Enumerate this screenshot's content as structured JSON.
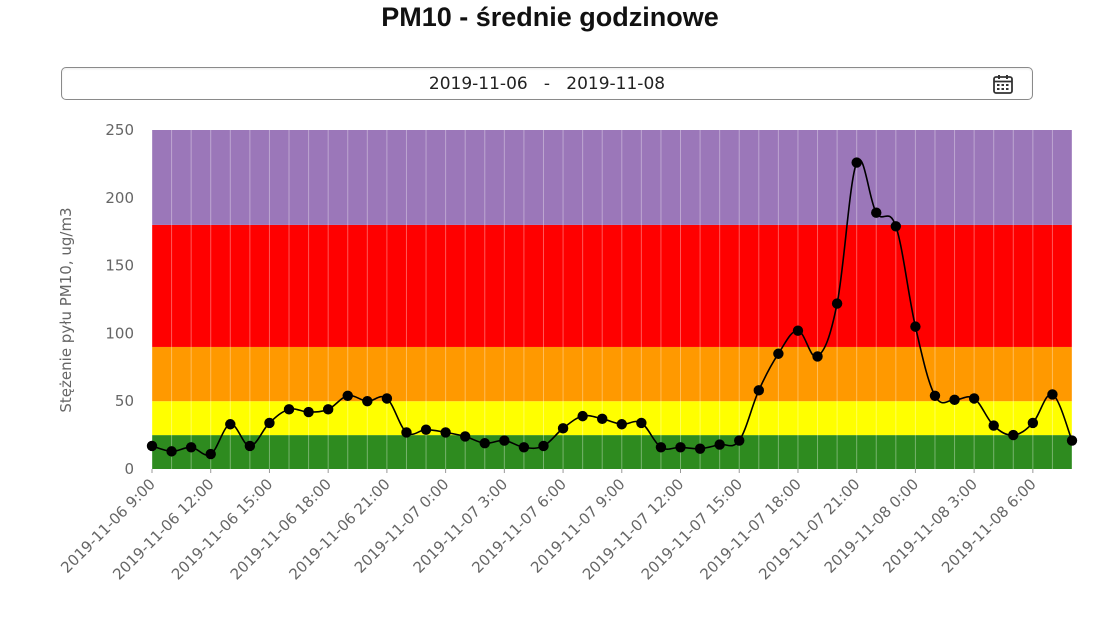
{
  "header": {
    "title": "PM10 - średnie godzinowe"
  },
  "date_picker": {
    "from": "2019-11-06",
    "separator": "-",
    "to": "2019-11-08",
    "icon": "calendar-icon"
  },
  "chart_data": {
    "type": "line",
    "title": "PM10 - średnie godzinowe",
    "ylabel": "Stężenie pyłu PM10, ug/m3",
    "xlabel": "",
    "ylim": [
      0,
      250
    ],
    "yticks": [
      0,
      50,
      100,
      150,
      200,
      250
    ],
    "grid": true,
    "legend": "none",
    "bands": [
      {
        "from": 0,
        "to": 25,
        "color": "#2e8b1f"
      },
      {
        "from": 25,
        "to": 50,
        "color": "#ffff00"
      },
      {
        "from": 50,
        "to": 90,
        "color": "#ff9900"
      },
      {
        "from": 90,
        "to": 180,
        "color": "#ff0000"
      },
      {
        "from": 180,
        "to": 250,
        "color": "#9b77b9"
      }
    ],
    "x": [
      "2019-11-06 9:00",
      "2019-11-06 10:00",
      "2019-11-06 11:00",
      "2019-11-06 12:00",
      "2019-11-06 13:00",
      "2019-11-06 14:00",
      "2019-11-06 15:00",
      "2019-11-06 16:00",
      "2019-11-06 17:00",
      "2019-11-06 18:00",
      "2019-11-06 19:00",
      "2019-11-06 20:00",
      "2019-11-06 21:00",
      "2019-11-06 22:00",
      "2019-11-06 23:00",
      "2019-11-07 0:00",
      "2019-11-07 1:00",
      "2019-11-07 2:00",
      "2019-11-07 3:00",
      "2019-11-07 4:00",
      "2019-11-07 5:00",
      "2019-11-07 6:00",
      "2019-11-07 7:00",
      "2019-11-07 8:00",
      "2019-11-07 9:00",
      "2019-11-07 10:00",
      "2019-11-07 11:00",
      "2019-11-07 12:00",
      "2019-11-07 13:00",
      "2019-11-07 14:00",
      "2019-11-07 15:00",
      "2019-11-07 16:00",
      "2019-11-07 17:00",
      "2019-11-07 18:00",
      "2019-11-07 19:00",
      "2019-11-07 20:00",
      "2019-11-07 21:00",
      "2019-11-07 22:00",
      "2019-11-07 23:00",
      "2019-11-08 0:00",
      "2019-11-08 1:00",
      "2019-11-08 2:00",
      "2019-11-08 3:00",
      "2019-11-08 4:00",
      "2019-11-08 5:00",
      "2019-11-08 6:00",
      "2019-11-08 7:00",
      "2019-11-08 8:00"
    ],
    "xtick_labels": [
      "2019-11-06 9:00",
      "2019-11-06 12:00",
      "2019-11-06 15:00",
      "2019-11-06 18:00",
      "2019-11-06 21:00",
      "2019-11-07 0:00",
      "2019-11-07 3:00",
      "2019-11-07 6:00",
      "2019-11-07 9:00",
      "2019-11-07 12:00",
      "2019-11-07 15:00",
      "2019-11-07 18:00",
      "2019-11-07 21:00",
      "2019-11-08 0:00",
      "2019-11-08 3:00",
      "2019-11-08 6:00"
    ],
    "series": [
      {
        "color": "#000000",
        "values": [
          17,
          13,
          16,
          11,
          33,
          17,
          34,
          44,
          42,
          44,
          54,
          50,
          52,
          27,
          29,
          27,
          24,
          19,
          21,
          16,
          17,
          30,
          39,
          37,
          33,
          34,
          16,
          16,
          15,
          18,
          21,
          58,
          85,
          102,
          83,
          122,
          226,
          189,
          179,
          105,
          54,
          51,
          52,
          32,
          25,
          34,
          55,
          21
        ]
      }
    ]
  }
}
